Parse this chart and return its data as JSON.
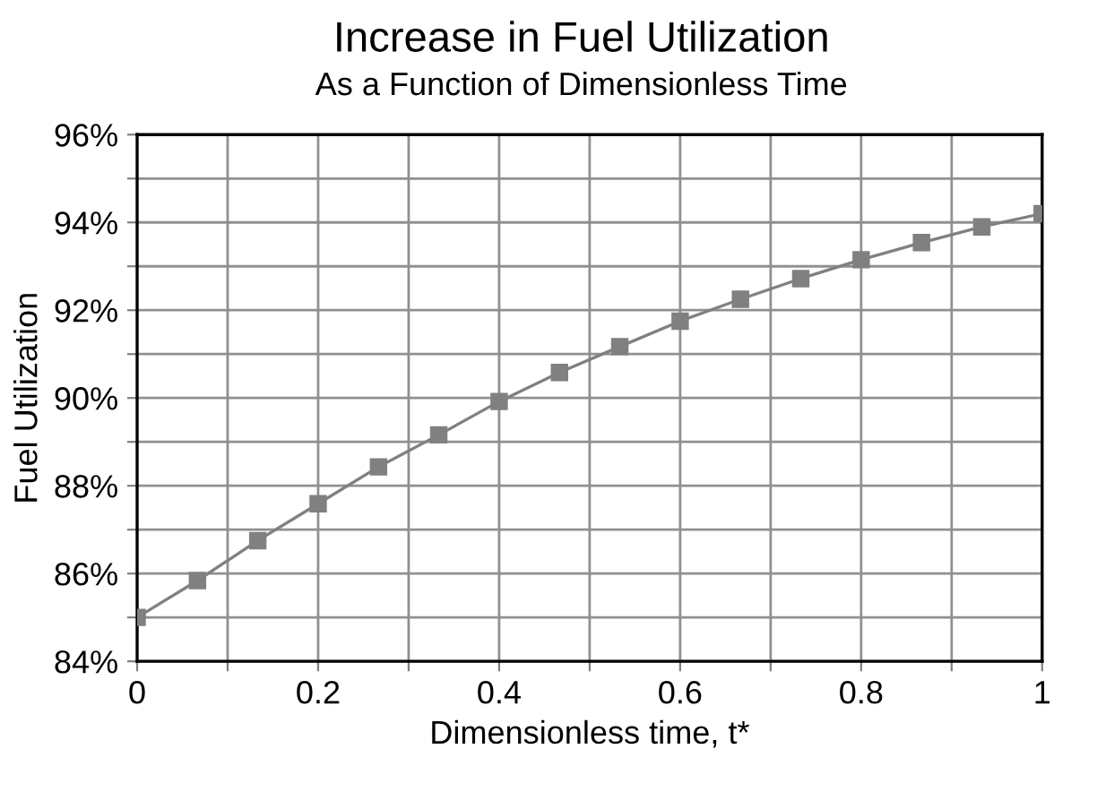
{
  "chart_data": {
    "type": "line",
    "title": "Increase in Fuel Utilization",
    "subtitle": "As a Function of Dimensionless Time",
    "xlabel": "Dimensionless time, t*",
    "ylabel": "Fuel Utilization",
    "x": [
      0,
      0.0667,
      0.1333,
      0.2,
      0.2667,
      0.3333,
      0.4,
      0.4667,
      0.5333,
      0.6,
      0.6667,
      0.7333,
      0.8,
      0.8667,
      0.9333,
      1
    ],
    "series": [
      {
        "color": "#808080",
        "values": [
          85.0,
          85.84,
          86.75,
          87.59,
          88.43,
          89.16,
          89.92,
          90.58,
          91.17,
          91.75,
          92.25,
          92.72,
          93.15,
          93.54,
          93.9,
          94.2
        ]
      }
    ],
    "xlim": [
      0,
      1
    ],
    "ylim": [
      84,
      96
    ],
    "xticks": [
      0,
      {
        "value": 0.1,
        "label": null
      },
      0.2,
      {
        "value": 0.3,
        "label": null
      },
      0.4,
      {
        "value": 0.5,
        "label": null
      },
      0.6,
      {
        "value": 0.7,
        "label": null
      },
      0.8,
      {
        "value": 0.9,
        "label": null
      },
      1
    ],
    "yticks": [
      {
        "value": 84,
        "label": "84%"
      },
      {
        "value": 85,
        "label": null
      },
      {
        "value": 86,
        "label": "86%"
      },
      {
        "value": 87,
        "label": null
      },
      {
        "value": 88,
        "label": "88%"
      },
      {
        "value": 89,
        "label": null
      },
      {
        "value": 90,
        "label": "90%"
      },
      {
        "value": 91,
        "label": null
      },
      {
        "value": 92,
        "label": "92%"
      },
      {
        "value": 93,
        "label": null
      },
      {
        "value": 94,
        "label": "94%"
      },
      {
        "value": 95,
        "label": null
      },
      {
        "value": 96,
        "label": "96%"
      }
    ],
    "grid": true,
    "marker": "square",
    "line_style": "solid",
    "legend": false
  }
}
